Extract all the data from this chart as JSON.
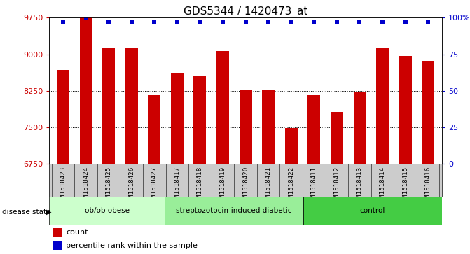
{
  "title": "GDS5344 / 1420473_at",
  "samples": [
    "GSM1518423",
    "GSM1518424",
    "GSM1518425",
    "GSM1518426",
    "GSM1518427",
    "GSM1518417",
    "GSM1518418",
    "GSM1518419",
    "GSM1518420",
    "GSM1518421",
    "GSM1518422",
    "GSM1518411",
    "GSM1518412",
    "GSM1518413",
    "GSM1518414",
    "GSM1518415",
    "GSM1518416"
  ],
  "counts": [
    8680,
    9760,
    9130,
    9140,
    8160,
    8620,
    8560,
    9060,
    8280,
    8280,
    7480,
    8160,
    7820,
    8220,
    9130,
    8960,
    8870
  ],
  "percentile_ranks": [
    97,
    100,
    97,
    97,
    97,
    97,
    97,
    97,
    97,
    97,
    97,
    97,
    97,
    97,
    97,
    97,
    97
  ],
  "groups": [
    {
      "label": "ob/ob obese",
      "start": 0,
      "end": 5
    },
    {
      "label": "streptozotocin-induced diabetic",
      "start": 5,
      "end": 11
    },
    {
      "label": "control",
      "start": 11,
      "end": 17
    }
  ],
  "group_colors": [
    "#ccffcc",
    "#99ee99",
    "#44cc44"
  ],
  "bar_color": "#cc0000",
  "dot_color": "#0000cc",
  "ylim_low": 6750,
  "ylim_high": 9750,
  "yticks": [
    6750,
    7500,
    8250,
    9000,
    9750
  ],
  "right_ytick_pcts": [
    0,
    25,
    50,
    75,
    100
  ],
  "right_ytick_labels": [
    "0",
    "25",
    "50",
    "75",
    "100%"
  ],
  "bg_color": "#cccccc",
  "legend_count_label": "count",
  "legend_pct_label": "percentile rank within the sample"
}
